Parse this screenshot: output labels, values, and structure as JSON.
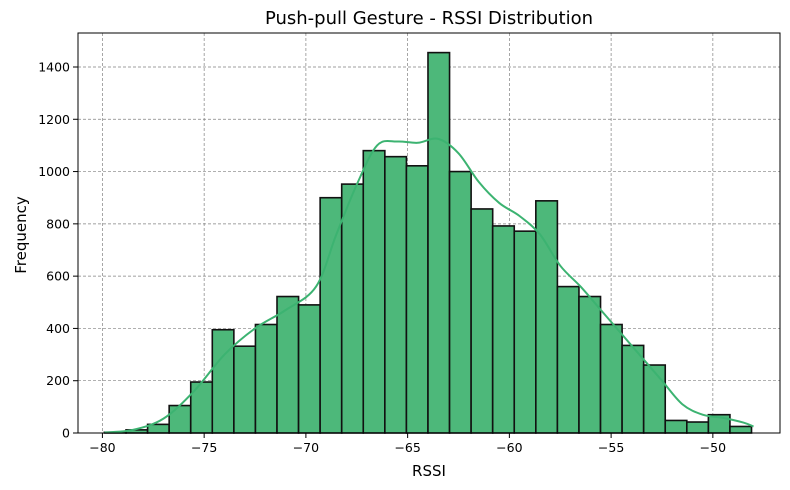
{
  "chart_data": {
    "type": "bar",
    "title": "Push-pull Gesture - RSSI Distribution",
    "xlabel": "RSSI",
    "ylabel": "Frequency",
    "xlim": [
      -81.2,
      -46.7
    ],
    "ylim": [
      0,
      1530
    ],
    "xticks": [
      -80,
      -75,
      -70,
      -65,
      -60,
      -55,
      -50
    ],
    "xtick_labels": [
      "−80",
      "−75",
      "−70",
      "−65",
      "−60",
      "−55",
      "−50"
    ],
    "yticks": [
      0,
      200,
      400,
      600,
      800,
      1000,
      1200,
      1400
    ],
    "ytick_labels": [
      "0",
      "200",
      "400",
      "600",
      "800",
      "1000",
      "1200",
      "1400"
    ],
    "grid": true,
    "bar_color": "#4db87a",
    "edge_color": "#111111",
    "kde_color": "#3cb371",
    "bins": [
      {
        "x0": -79.9,
        "x1": -78.84,
        "value": 3
      },
      {
        "x0": -78.84,
        "x1": -77.78,
        "value": 12
      },
      {
        "x0": -77.78,
        "x1": -76.72,
        "value": 33
      },
      {
        "x0": -76.72,
        "x1": -75.66,
        "value": 105
      },
      {
        "x0": -75.66,
        "x1": -74.6,
        "value": 195
      },
      {
        "x0": -74.6,
        "x1": -73.54,
        "value": 395
      },
      {
        "x0": -73.54,
        "x1": -72.48,
        "value": 332
      },
      {
        "x0": -72.48,
        "x1": -71.42,
        "value": 415
      },
      {
        "x0": -71.42,
        "x1": -70.36,
        "value": 522
      },
      {
        "x0": -70.36,
        "x1": -69.3,
        "value": 490
      },
      {
        "x0": -69.3,
        "x1": -68.24,
        "value": 900
      },
      {
        "x0": -68.24,
        "x1": -67.18,
        "value": 952
      },
      {
        "x0": -67.18,
        "x1": -66.12,
        "value": 1080
      },
      {
        "x0": -66.12,
        "x1": -65.06,
        "value": 1057
      },
      {
        "x0": -65.06,
        "x1": -64.0,
        "value": 1022
      },
      {
        "x0": -64.0,
        "x1": -62.94,
        "value": 1455
      },
      {
        "x0": -62.94,
        "x1": -61.88,
        "value": 1000
      },
      {
        "x0": -61.88,
        "x1": -60.82,
        "value": 857
      },
      {
        "x0": -60.82,
        "x1": -59.76,
        "value": 792
      },
      {
        "x0": -59.76,
        "x1": -58.7,
        "value": 772
      },
      {
        "x0": -58.7,
        "x1": -57.64,
        "value": 888
      },
      {
        "x0": -57.64,
        "x1": -56.58,
        "value": 560
      },
      {
        "x0": -56.58,
        "x1": -55.52,
        "value": 522
      },
      {
        "x0": -55.52,
        "x1": -54.46,
        "value": 415
      },
      {
        "x0": -54.46,
        "x1": -53.4,
        "value": 335
      },
      {
        "x0": -53.4,
        "x1": -52.34,
        "value": 260
      },
      {
        "x0": -52.34,
        "x1": -51.28,
        "value": 48
      },
      {
        "x0": -51.28,
        "x1": -50.22,
        "value": 42
      },
      {
        "x0": -50.22,
        "x1": -49.16,
        "value": 70
      },
      {
        "x0": -49.16,
        "x1": -48.1,
        "value": 25
      }
    ],
    "kde": {
      "x": [
        -79.9,
        -78.5,
        -77.0,
        -75.5,
        -74.0,
        -72.5,
        -71.0,
        -69.5,
        -68.5,
        -67.5,
        -66.5,
        -65.5,
        -64.5,
        -63.5,
        -62.5,
        -61.5,
        -60.5,
        -59.5,
        -58.5,
        -57.5,
        -56.5,
        -55.5,
        -54.5,
        -53.5,
        -52.5,
        -51.5,
        -50.5,
        -49.5,
        -48.5,
        -48.0
      ],
      "y": [
        2,
        12,
        55,
        160,
        300,
        400,
        470,
        560,
        760,
        950,
        1100,
        1115,
        1110,
        1125,
        1070,
        960,
        880,
        830,
        760,
        640,
        560,
        470,
        380,
        290,
        200,
        110,
        70,
        58,
        40,
        25
      ]
    }
  }
}
